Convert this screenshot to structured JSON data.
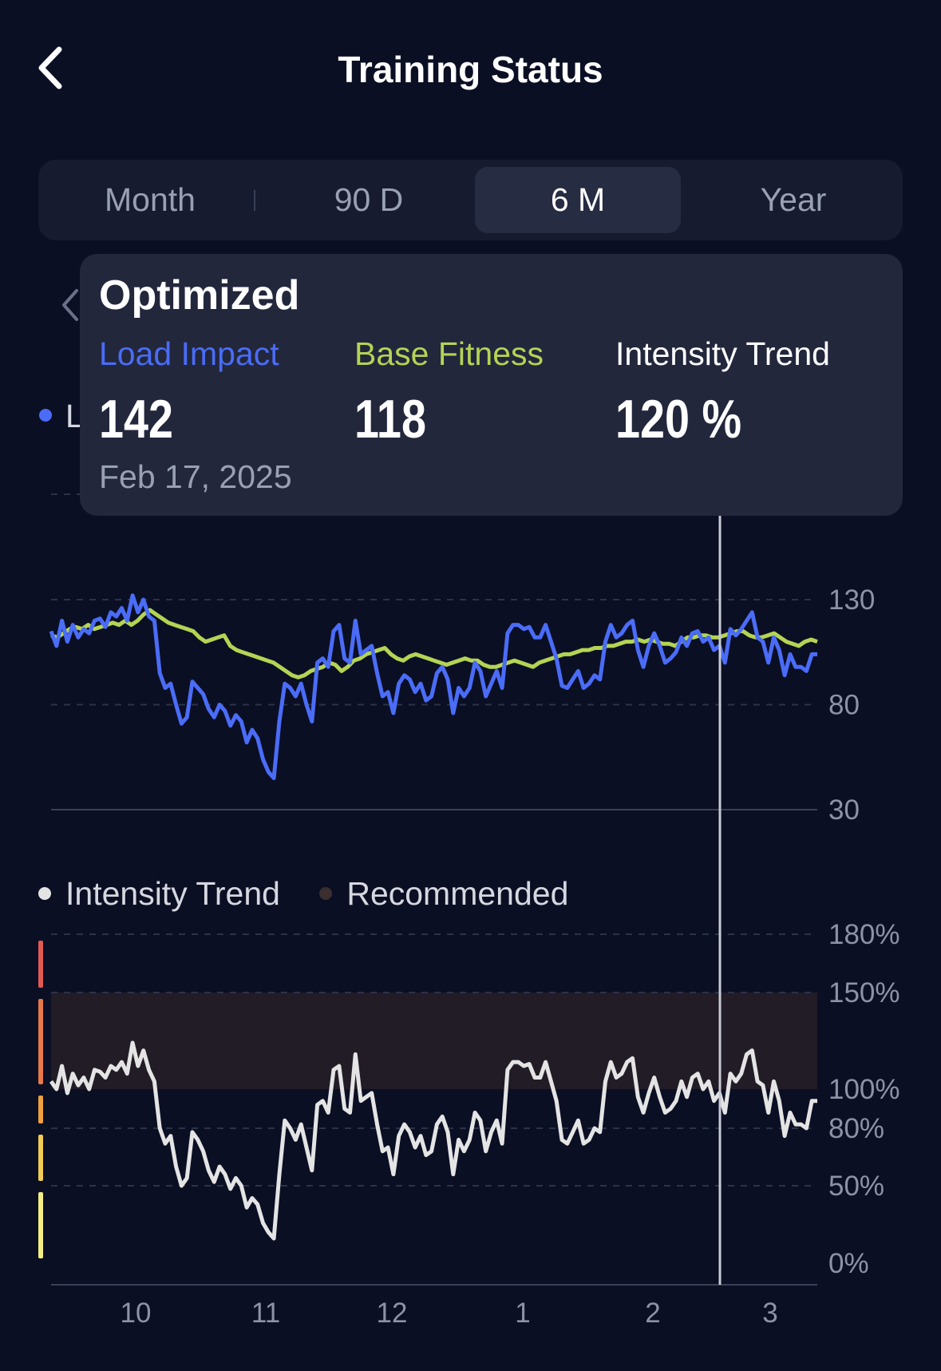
{
  "header": {
    "title": "Training Status",
    "back_icon": "chevron-left-icon"
  },
  "segments": {
    "items": [
      "Month",
      "90 D",
      "6 M",
      "Year"
    ],
    "active": "6 M"
  },
  "popup": {
    "title": "Optimized",
    "load_label": "Load Impact",
    "load_value": "142",
    "base_label": "Base Fitness",
    "base_value": "118",
    "intensity_label": "Intensity Trend",
    "intensity_value": "120 %",
    "date": "Feb 17, 2025"
  },
  "upper_legend": {
    "partial_text": "L"
  },
  "lower_legend": {
    "intensity": "Intensity Trend",
    "recommended": "Recommended"
  },
  "colors": {
    "background": "#0b0f24",
    "load_impact": "#4a6cf7",
    "base_fitness": "#b4d454",
    "intensity": "#e4e4e4",
    "recommended_band": "#221c26",
    "recommended_dot": "#3a2e2e",
    "zone_colors": [
      "#e05a52",
      "#e5794a",
      "#f0a040",
      "#f2cc55",
      "#f5ee82"
    ]
  },
  "chart_data": [
    {
      "type": "line",
      "title": "",
      "x_ticks": [
        "10",
        "11",
        "12",
        "1",
        "2",
        "3"
      ],
      "y_ticks": [
        "130",
        "80",
        "30"
      ],
      "ylim": [
        30,
        130
      ],
      "grid": true,
      "series": [
        {
          "name": "Load Impact",
          "values": [
            115,
            108,
            120,
            110,
            118,
            112,
            116,
            114,
            120,
            121,
            117,
            124,
            122,
            126,
            120,
            132,
            124,
            130,
            122,
            120,
            95,
            88,
            90,
            80,
            71,
            74,
            91,
            88,
            85,
            78,
            74,
            80,
            77,
            70,
            75,
            72,
            62,
            68,
            64,
            54,
            48,
            45,
            72,
            90,
            88,
            84,
            90,
            80,
            72,
            100,
            102,
            98,
            115,
            118,
            102,
            100,
            120,
            104,
            106,
            108,
            95,
            84,
            86,
            76,
            90,
            94,
            92,
            86,
            90,
            82,
            84,
            95,
            98,
            92,
            76,
            88,
            84,
            88,
            100,
            96,
            84,
            90,
            96,
            88,
            114,
            118,
            118,
            116,
            117,
            112,
            112,
            118,
            110,
            102,
            89,
            88,
            92,
            96,
            88,
            90,
            94,
            92,
            110,
            118,
            112,
            114,
            118,
            120,
            106,
            98,
            108,
            114,
            108,
            100,
            102,
            105,
            112,
            108,
            114,
            115,
            110,
            112,
            106,
            108,
            100,
            116,
            113,
            116,
            120,
            124,
            112,
            110,
            100,
            112,
            106,
            94,
            104,
            98,
            98,
            96,
            104,
            104
          ],
          "label": "142"
        },
        {
          "name": "Base Fitness",
          "values": [
            113,
            112,
            114,
            116,
            117,
            116,
            118,
            116,
            117,
            118,
            119,
            118,
            120,
            118,
            120,
            123,
            125,
            123,
            121,
            119,
            118,
            117,
            116,
            115,
            112,
            110,
            111,
            112,
            113,
            108,
            106,
            105,
            104,
            103,
            102,
            101,
            100,
            98,
            96,
            94,
            93,
            94,
            96,
            97,
            98,
            100,
            99,
            96,
            98,
            101,
            102,
            104,
            105,
            106,
            107,
            104,
            102,
            101,
            103,
            104,
            103,
            102,
            101,
            100,
            99,
            100,
            101,
            102,
            101,
            101,
            99,
            98,
            98,
            99,
            100,
            101,
            100,
            99,
            98,
            100,
            101,
            102,
            103,
            104,
            104,
            105,
            106,
            106,
            107,
            107,
            108,
            108,
            109,
            110,
            110,
            111,
            110,
            111,
            110,
            109,
            109,
            108,
            110,
            112,
            112,
            113,
            113,
            112,
            112,
            113,
            114,
            115,
            115,
            113,
            112,
            112,
            113,
            114,
            112,
            110,
            109,
            108,
            110,
            111,
            110
          ],
          "label": "118"
        }
      ]
    },
    {
      "type": "line",
      "title": "",
      "x_ticks": [
        "10",
        "11",
        "12",
        "1",
        "2",
        "3"
      ],
      "y_ticks": [
        "180%",
        "150%",
        "100%",
        "80%",
        "50%",
        "0%"
      ],
      "recommended_range": [
        100,
        150
      ],
      "grid": true,
      "series": [
        {
          "name": "Intensity Trend",
          "values": [
            104,
            100,
            112,
            98,
            108,
            102,
            106,
            100,
            110,
            109,
            106,
            112,
            110,
            114,
            108,
            124,
            112,
            120,
            110,
            104,
            80,
            72,
            76,
            60,
            50,
            54,
            78,
            74,
            68,
            58,
            52,
            60,
            56,
            48,
            54,
            50,
            36,
            42,
            38,
            26,
            20,
            16,
            56,
            84,
            80,
            74,
            82,
            70,
            58,
            92,
            94,
            88,
            110,
            112,
            90,
            88,
            118,
            94,
            96,
            98,
            82,
            68,
            70,
            56,
            76,
            82,
            78,
            70,
            76,
            66,
            68,
            82,
            86,
            78,
            56,
            74,
            68,
            74,
            88,
            84,
            68,
            78,
            84,
            72,
            110,
            114,
            114,
            112,
            113,
            106,
            106,
            114,
            104,
            94,
            74,
            72,
            78,
            84,
            72,
            74,
            80,
            78,
            104,
            114,
            106,
            108,
            114,
            116,
            96,
            88,
            98,
            106,
            96,
            88,
            90,
            94,
            104,
            96,
            106,
            108,
            100,
            104,
            94,
            98,
            88,
            108,
            104,
            108,
            118,
            120,
            104,
            102,
            88,
            104,
            94,
            76,
            88,
            82,
            82,
            80,
            94,
            94
          ],
          "label": "120 %"
        }
      ]
    }
  ]
}
